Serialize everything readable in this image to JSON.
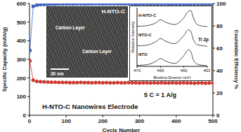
{
  "chart_data": [
    {
      "type": "line",
      "xlabel": "Cycle Number",
      "x": [
        1,
        10,
        20,
        30,
        40,
        50,
        60,
        70,
        80,
        90,
        100,
        110,
        120,
        130,
        140,
        150,
        160,
        170,
        180,
        190,
        200,
        210,
        220,
        230,
        240,
        250,
        260,
        270,
        280,
        290,
        300,
        310,
        320,
        330,
        340,
        350,
        360,
        370,
        380,
        390,
        400,
        410,
        420,
        430,
        440,
        450,
        460,
        470,
        480,
        490,
        500
      ],
      "xlim": [
        0,
        500
      ],
      "xticks": [
        0,
        100,
        200,
        300,
        400,
        500
      ],
      "ylim": [
        0,
        600
      ],
      "yticks": [
        0,
        100,
        200,
        300,
        400,
        500,
        600
      ],
      "y2lim": [
        0,
        100
      ],
      "y2ticks": [
        0,
        20,
        40,
        60,
        80,
        100
      ],
      "grid": false,
      "annotations": [
        "5 C = 1 A/g",
        "H-NTO-C Nanowires Electrode"
      ],
      "series": [
        {
          "name": "Specific Capacity (mAh/g)",
          "color": "#e8352c",
          "marker": "circle",
          "axis": "y",
          "values": [
            292,
            188,
            182,
            180,
            179,
            178,
            177,
            177,
            176,
            176,
            176,
            175,
            175,
            175,
            176,
            175,
            175,
            174,
            175,
            175,
            174,
            175,
            174,
            174,
            175,
            174,
            174,
            175,
            174,
            174,
            173,
            174,
            174,
            173,
            174,
            173,
            174,
            173,
            173,
            174,
            173,
            173,
            174,
            173,
            173,
            172,
            173,
            173,
            172,
            173,
            173
          ]
        },
        {
          "name": "Coulombic Efficiency %",
          "color": "#3a66d6",
          "marker": "square",
          "axis": "y2",
          "values": [
            58,
            97.5,
            98.6,
            99,
            99.2,
            99.3,
            99.4,
            99.4,
            99.5,
            99.5,
            99.5,
            99.6,
            99.5,
            99.6,
            99.6,
            99.5,
            99.6,
            99.6,
            99.7,
            99.6,
            99.6,
            99.6,
            99.7,
            99.6,
            99.6,
            99.7,
            99.6,
            99.6,
            99.7,
            99.6,
            99.6,
            99.7,
            99.6,
            99.6,
            99.7,
            99.6,
            99.6,
            99.7,
            99.6,
            99.6,
            99.7,
            99.6,
            99.6,
            99.7,
            99.6,
            99.6,
            99.7,
            99.6,
            99.6,
            99.7,
            99.6
          ]
        }
      ]
    },
    {
      "type": "line",
      "title": "Ti 2p",
      "xlabel": "Binding Energy (eV)",
      "ylabel": "Relative Intensity",
      "tick_labels": "x",
      "x": [
        470,
        468,
        466,
        465,
        464,
        462,
        460,
        459,
        458.5,
        458,
        457,
        455
      ],
      "xlim": [
        470,
        455
      ],
      "xticks": [
        470,
        465,
        460,
        455
      ],
      "ylim": [
        0,
        3
      ],
      "series": [
        {
          "name": "H-NTO-C",
          "color": "#222222",
          "values": [
            2.05,
            2.08,
            2.22,
            2.38,
            2.27,
            2.14,
            2.48,
            2.82,
            2.85,
            2.5,
            2.12,
            2.03
          ]
        },
        {
          "name": "NTO-C",
          "color": "#222222",
          "values": [
            1.05,
            1.08,
            1.26,
            1.42,
            1.3,
            1.16,
            1.58,
            1.87,
            1.78,
            1.38,
            1.1,
            1.03
          ]
        },
        {
          "name": "NTO",
          "color": "#222222",
          "values": [
            0.05,
            0.08,
            0.25,
            0.4,
            0.28,
            0.15,
            0.55,
            0.85,
            0.75,
            0.35,
            0.1,
            0.03
          ]
        }
      ]
    }
  ],
  "image_inset": {
    "label": "H-NTO-C",
    "scale_bar": "30 nm",
    "annotations": [
      "Carbon Layer",
      "Carbon Layer"
    ]
  }
}
